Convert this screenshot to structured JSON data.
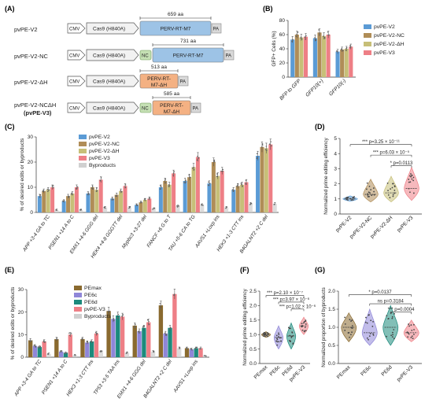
{
  "panel_labels": {
    "a": "(A)",
    "b": "(B)",
    "c": "(C)",
    "d": "(D)",
    "e": "(E)",
    "f": "(F)",
    "g": "(G)"
  },
  "colors": {
    "v2": "#5b9bd5",
    "nc": "#b08d57",
    "dh": "#c7bf78",
    "v3": "#ee7f86",
    "byp": "#d0d0d0",
    "pemax": "#8a6a2f",
    "pe6c": "#8f86d8",
    "pe6d": "#1c8a7c",
    "cas9": "#f2f2f2",
    "rt_blue": "#9dc3e6",
    "rt_orange": "#f4b183",
    "nc_green": "#c5e0b4",
    "pa": "#d9d9d9"
  },
  "constructs": [
    {
      "name": "pvPE-V2",
      "name2": "",
      "cmv": "CMV",
      "cas9": "Cas9 (H840A)",
      "nc": "",
      "rt": "PERV-RT-M7",
      "rt2": "",
      "pa": "PA",
      "aa": "659 aa",
      "rt_color": "blue"
    },
    {
      "name": "pvPE-V2-NC",
      "name2": "",
      "cmv": "CMV",
      "cas9": "Cas9 (H840A)",
      "nc": "NC",
      "rt": "PERV-RT-M7",
      "rt2": "",
      "pa": "PA",
      "aa": "731 aa",
      "rt_color": "blue"
    },
    {
      "name": "pvPE-V2-ΔH",
      "name2": "",
      "cmv": "CMV",
      "cas9": "Cas9 (H840A)",
      "nc": "",
      "rt": "PERV-RT-",
      "rt2": "M7-ΔH",
      "pa": "PA",
      "aa": "513 aa",
      "rt_color": "orange"
    },
    {
      "name": "pvPE-V2-NCΔH",
      "name2": "(pvPE-V3)",
      "cmv": "CMV",
      "cas9": "Cas9 (H840A)",
      "nc": "NC",
      "rt": "PERV-RT-",
      "rt2": "M7-ΔH",
      "pa": "PA",
      "aa": "585 aa",
      "rt_color": "orange"
    }
  ],
  "chart_data": [
    {
      "panel": "B",
      "type": "bar",
      "title": "",
      "ylabel": "GFP+ Cells (%)",
      "ylim": [
        0,
        80
      ],
      "yticks": [
        "0",
        "20",
        "40",
        "60",
        "80"
      ],
      "categories": [
        "BFP to GFP",
        "GFP10(+)",
        "GFP10(-)"
      ],
      "series": [
        {
          "name": "pvPE-V2",
          "color": "#5b9bd5",
          "values": [
            53,
            55,
            36
          ]
        },
        {
          "name": "pvPE-V2-NC",
          "color": "#b08d57",
          "values": [
            60,
            63,
            39
          ]
        },
        {
          "name": "pvPE-V2-ΔH",
          "color": "#c7bf78",
          "values": [
            56,
            58,
            40
          ]
        },
        {
          "name": "pvPE-V3",
          "color": "#ee7f86",
          "values": [
            57,
            60,
            43
          ]
        }
      ]
    },
    {
      "panel": "C",
      "type": "bar",
      "title": "",
      "ylabel": "% of desired edits or byproducts",
      "ylim": [
        0,
        30
      ],
      "yticks": [
        "0",
        "10",
        "20",
        "30"
      ],
      "categories": [
        "APP +3-4 GA to TC",
        "PSEN1 +14 A to C",
        "EMX1 +4-6 GGG del",
        "HEK4 +4-8 GGGTT del",
        "Mypbc3 +3-27 del",
        "FANCF +6 G to T",
        "TAU +5-6 CA to TG",
        "AAVS1 +Loxp ins",
        "HEK3 +1-3 CTT ins",
        "B4GALNT2 +2 C del"
      ],
      "series": [
        {
          "name": "pvPE-V2",
          "color": "#5b9bd5",
          "values": [
            6.5,
            4.5,
            7.5,
            5.5,
            3.0,
            10.0,
            12.5,
            11.5,
            9.0,
            22.5
          ]
        },
        {
          "name": "pvPE-V2-NC",
          "color": "#b08d57",
          "values": [
            8.5,
            6.5,
            10.0,
            7.0,
            4.0,
            12.5,
            14.0,
            20.0,
            10.5,
            26.0
          ]
        },
        {
          "name": "pvPE-V2-ΔH",
          "color": "#c7bf78",
          "values": [
            9.0,
            7.5,
            9.0,
            8.5,
            5.0,
            11.0,
            18.0,
            14.5,
            11.0,
            25.5
          ]
        },
        {
          "name": "pvPE-V3",
          "color": "#ee7f86",
          "values": [
            10.0,
            10.0,
            13.0,
            10.5,
            5.5,
            15.5,
            22.0,
            16.5,
            12.0,
            27.0
          ]
        },
        {
          "name": "Byproducts",
          "color": "#d0d0d0",
          "values": [
            1.0,
            1.0,
            2.0,
            2.0,
            1.5,
            2.5,
            3.0,
            2.0,
            3.5,
            3.5
          ]
        }
      ]
    },
    {
      "panel": "D",
      "type": "violin",
      "ylabel": "Normalized prime editing efficiency",
      "ylim": [
        0,
        5
      ],
      "yticks": [
        "0",
        "1",
        "2",
        "3",
        "4",
        "5"
      ],
      "categories": [
        "pvPE-V2",
        "pvPE-V2-NC",
        "pvPE-V2-ΔH",
        "pvPE-V3"
      ],
      "colors": [
        "#5b9bd5",
        "#b08d57",
        "#c7bf78",
        "#ee7f86"
      ],
      "medians": [
        1.0,
        1.3,
        1.4,
        1.7
      ],
      "spread": [
        [
          0.85,
          1.2
        ],
        [
          0.8,
          2.3
        ],
        [
          0.8,
          2.5
        ],
        [
          0.9,
          3.1
        ]
      ],
      "annotations": [
        {
          "label": "*** p=3.25 × 10⁻¹¹",
          "from": 0,
          "to": 3,
          "y": 4.6
        },
        {
          "label": "*** p=6.03 × 10⁻⁵",
          "from": 1,
          "to": 3,
          "y": 3.9
        },
        {
          "label": "* p=0.0113",
          "from": 2,
          "to": 3,
          "y": 3.2
        }
      ]
    },
    {
      "panel": "E",
      "type": "bar",
      "ylabel": "% of desired edits or byproducts",
      "ylim": [
        0,
        30
      ],
      "yticks": [
        "0",
        "10",
        "20",
        "30"
      ],
      "categories": [
        "APP +3-4 GA to TC",
        "PSEN1 +14 A to C",
        "HEK3 +1-3 CTT ins",
        "TP53 +3-5 TAA ins",
        "EMX1 +4-6 GGG del",
        "B4GALNT2 +2 C del",
        "AAVS1 +Loxp ins"
      ],
      "series": [
        {
          "name": "PEmax",
          "color": "#8a6a2f",
          "values": [
            7.5,
            8.0,
            8.0,
            20.5,
            14.0,
            23.0,
            4.0
          ]
        },
        {
          "name": "PE6c",
          "color": "#8f86d8",
          "values": [
            5.0,
            2.5,
            6.5,
            17.0,
            11.5,
            10.5,
            3.5
          ]
        },
        {
          "name": "PE6d",
          "color": "#1c8a7c",
          "values": [
            4.5,
            2.0,
            7.0,
            18.5,
            13.0,
            13.0,
            4.0
          ]
        },
        {
          "name": "pvPE-V3",
          "color": "#ee7f86",
          "values": [
            7.0,
            10.0,
            10.5,
            18.0,
            15.5,
            28.0,
            4.0
          ]
        },
        {
          "name": "Byproducts",
          "color": "#d0d0d0",
          "values": [
            1.5,
            1.0,
            2.5,
            2.0,
            2.5,
            4.0,
            0.5
          ]
        }
      ]
    },
    {
      "panel": "F",
      "type": "violin",
      "ylabel": "Normalized prime editing efficiency",
      "ylim": [
        0.0,
        2.5
      ],
      "yticks": [
        "0.0",
        "0.5",
        "1.0",
        "1.5",
        "2.0",
        "2.5"
      ],
      "categories": [
        "PEmax",
        "PE6c",
        "PE6d",
        "pvPE-V3"
      ],
      "colors": [
        "#8a6a2f",
        "#8f86d8",
        "#1c8a7c",
        "#ee7f86"
      ],
      "medians": [
        1.0,
        0.9,
        0.95,
        1.3
      ],
      "spread": [
        [
          0.9,
          1.1
        ],
        [
          0.5,
          1.3
        ],
        [
          0.5,
          1.4
        ],
        [
          1.0,
          1.6
        ]
      ],
      "annotations": [
        {
          "label": "*** p=2.10 × 10⁻⁷",
          "from": 0,
          "to": 3,
          "y": 2.35
        },
        {
          "label": "*** p=3.97 × 10⁻⁶",
          "from": 1,
          "to": 3,
          "y": 2.12
        },
        {
          "label": "*** p=1.02 × 10⁻⁶",
          "from": 2,
          "to": 3,
          "y": 1.88
        }
      ]
    },
    {
      "panel": "G",
      "type": "violin",
      "ylabel": "Normalized proportion of byproducts",
      "ylim": [
        0.0,
        2.0
      ],
      "yticks": [
        "0.0",
        "0.5",
        "1.0",
        "1.5",
        "2.0"
      ],
      "categories": [
        "PEmax",
        "PE6c",
        "PE6d",
        "pvPE-V3"
      ],
      "colors": [
        "#8a6a2f",
        "#8f86d8",
        "#1c8a7c",
        "#ee7f86"
      ],
      "medians": [
        1.0,
        0.85,
        1.0,
        0.85
      ],
      "spread": [
        [
          0.6,
          1.4
        ],
        [
          0.5,
          1.5
        ],
        [
          0.5,
          1.6
        ],
        [
          0.6,
          1.2
        ]
      ],
      "annotations": [
        {
          "label": "* p=0.0137",
          "from": 0,
          "to": 3,
          "y": 1.9
        },
        {
          "label": "ns p=0.3184",
          "from": 1,
          "to": 3,
          "y": 1.65
        },
        {
          "label": "*** p=0.0004",
          "from": 2,
          "to": 3,
          "y": 1.42
        }
      ]
    }
  ]
}
